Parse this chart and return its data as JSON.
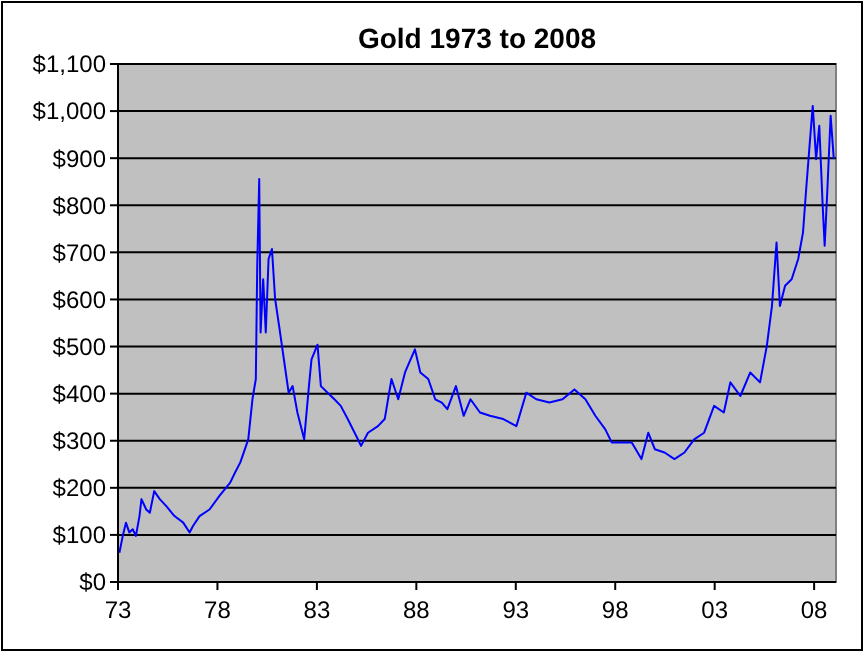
{
  "chart_data": {
    "type": "line",
    "title": "Gold 1973 to 2008",
    "x": [
      1973.07,
      1973.24,
      1973.4,
      1973.57,
      1973.74,
      1973.9,
      1974.08,
      1974.18,
      1974.42,
      1974.6,
      1974.82,
      1975.1,
      1975.43,
      1975.84,
      1976.28,
      1976.6,
      1976.77,
      1977.1,
      1977.6,
      1978.1,
      1978.64,
      1978.88,
      1979.15,
      1979.55,
      1979.76,
      1979.93,
      1980.0,
      1980.1,
      1980.17,
      1980.3,
      1980.43,
      1980.57,
      1980.74,
      1980.9,
      1981.1,
      1981.34,
      1981.58,
      1981.78,
      1982.02,
      1982.36,
      1982.6,
      1982.73,
      1983.03,
      1983.2,
      1983.54,
      1983.88,
      1984.2,
      1984.55,
      1985.06,
      1985.22,
      1985.57,
      1986.07,
      1986.41,
      1986.75,
      1987.09,
      1987.43,
      1987.93,
      1988.2,
      1988.6,
      1988.95,
      1989.28,
      1989.56,
      1989.99,
      1990.38,
      1990.72,
      1991.2,
      1991.7,
      1992.37,
      1993.03,
      1993.53,
      1994.03,
      1994.69,
      1995.35,
      1995.95,
      1996.5,
      1997.0,
      1997.5,
      1997.83,
      1998.33,
      1998.83,
      1999.32,
      1999.66,
      1999.99,
      2000.48,
      2000.98,
      2001.48,
      2001.97,
      2002.47,
      2002.97,
      2003.46,
      2003.79,
      2004.29,
      2004.79,
      2005.28,
      2005.62,
      2005.88,
      2006.11,
      2006.28,
      2006.54,
      2006.87,
      2007.2,
      2007.44,
      2007.6,
      2007.77,
      2007.93,
      2008.1,
      2008.26,
      2008.43,
      2008.53,
      2008.66,
      2008.83,
      2008.99
    ],
    "series": [
      {
        "color": "#0000ff",
        "values": [
          62,
          98,
          126,
          105,
          112,
          98,
          140,
          176,
          154,
          147,
          193,
          176,
          161,
          140,
          126,
          105,
          119,
          140,
          154,
          183,
          211,
          232,
          254,
          303,
          388,
          431,
          671,
          856,
          530,
          643,
          530,
          686,
          707,
          601,
          544,
          473,
          402,
          416,
          360,
          303,
          416,
          473,
          504,
          416,
          402,
          388,
          374,
          346,
          303,
          289,
          317,
          331,
          346,
          431,
          388,
          445,
          494,
          445,
          431,
          388,
          381,
          367,
          416,
          353,
          388,
          360,
          353,
          346,
          331,
          402,
          388,
          381,
          388,
          409,
          388,
          353,
          324,
          296,
          296,
          296,
          261,
          317,
          282,
          275,
          261,
          275,
          303,
          317,
          374,
          360,
          424,
          395,
          445,
          424,
          501,
          586,
          721,
          586,
          629,
          643,
          686,
          742,
          834,
          926,
          1011,
          898,
          969,
          799,
          714,
          827,
          990,
          898
        ]
      }
    ],
    "xlim": [
      1973,
      2009.1
    ],
    "xticks": [
      {
        "value": 1973,
        "label": "73"
      },
      {
        "value": 1978,
        "label": "78"
      },
      {
        "value": 1983,
        "label": "83"
      },
      {
        "value": 1988,
        "label": "88"
      },
      {
        "value": 1993,
        "label": "93"
      },
      {
        "value": 1998,
        "label": "98"
      },
      {
        "value": 2003,
        "label": "03"
      },
      {
        "value": 2008,
        "label": "08"
      }
    ],
    "ylim": [
      0,
      1100
    ],
    "yticks": [
      {
        "value": 0,
        "label": "$0"
      },
      {
        "value": 100,
        "label": "$100"
      },
      {
        "value": 200,
        "label": "$200"
      },
      {
        "value": 300,
        "label": "$300"
      },
      {
        "value": 400,
        "label": "$400"
      },
      {
        "value": 500,
        "label": "$500"
      },
      {
        "value": 600,
        "label": "$600"
      },
      {
        "value": 700,
        "label": "$700"
      },
      {
        "value": 800,
        "label": "$800"
      },
      {
        "value": 900,
        "label": "$900"
      },
      {
        "value": 1000,
        "label": "$1,000"
      },
      {
        "value": 1100,
        "label": "$1,100"
      }
    ],
    "grid": "y",
    "marker": "none",
    "line_style": "solid"
  }
}
